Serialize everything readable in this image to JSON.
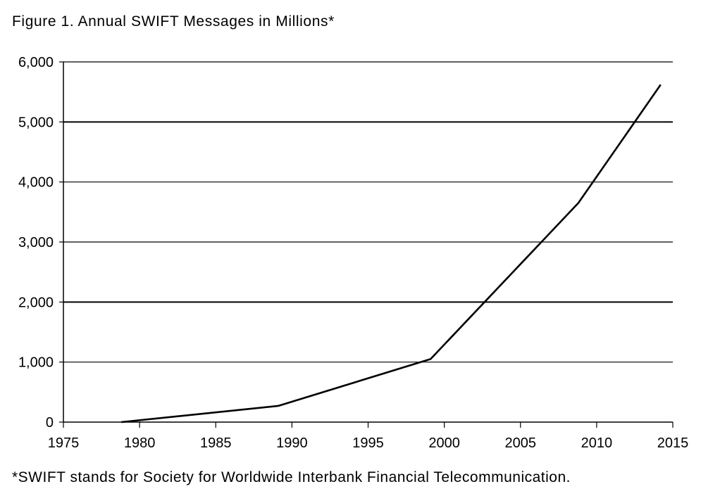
{
  "figure": {
    "title": "Figure 1.  Annual SWIFT Messages in Millions*",
    "footnote": "*SWIFT stands for Society for Worldwide Interbank Financial Telecommunication."
  },
  "chart_data": {
    "type": "line",
    "title": "Figure 1.  Annual SWIFT Messages in Millions*",
    "xlabel": "",
    "ylabel": "",
    "xlim": [
      1975,
      2015
    ],
    "ylim": [
      0,
      6000
    ],
    "x_ticks": [
      1975,
      1980,
      1985,
      1990,
      1995,
      2000,
      2005,
      2010,
      2015
    ],
    "x_tick_labels": [
      "1975",
      "1980",
      "1985",
      "1990",
      "1995",
      "2000",
      "2005",
      "2010",
      "2015"
    ],
    "y_ticks": [
      0,
      1000,
      2000,
      3000,
      4000,
      5000,
      6000
    ],
    "y_tick_labels": [
      "0",
      "1,000",
      "2,000",
      "3,000",
      "4,000",
      "5,000",
      "6,000"
    ],
    "grid": "horizontal",
    "legend": "none",
    "line_color": "#000000",
    "series": [
      {
        "x": [
          1978.8,
          1989.1,
          1999.1,
          2008.8,
          2014.2
        ],
        "y": [
          0,
          270,
          1050,
          3650,
          5620
        ]
      }
    ]
  }
}
